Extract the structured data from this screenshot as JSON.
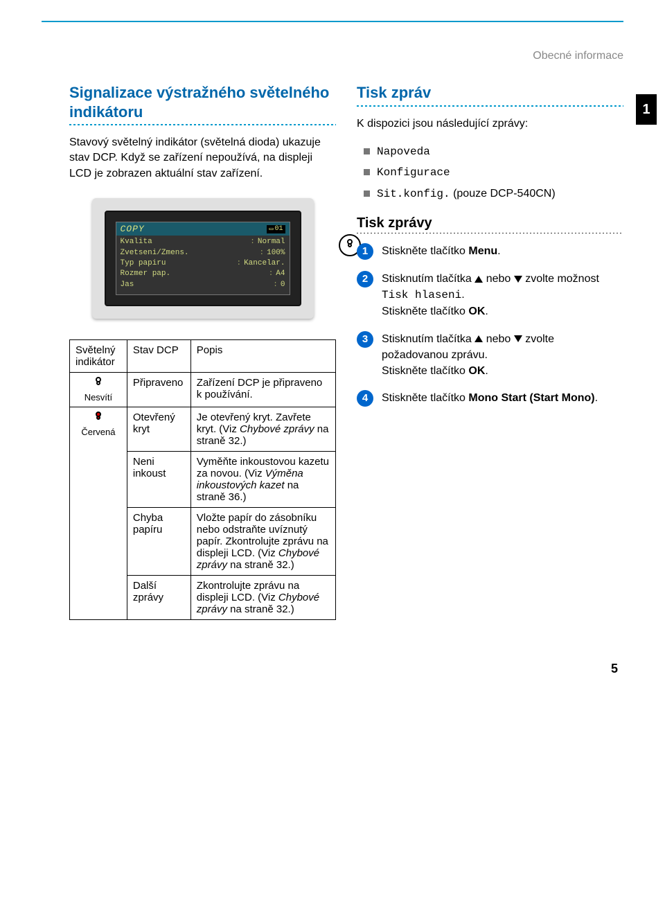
{
  "header_right": "Obecné informace",
  "chapter_tab": "1",
  "page_number": "5",
  "left": {
    "h2": "Signalizace výstražného světelného indikátoru",
    "intro": "Stavový světelný indikátor (světelná dioda) ukazuje stav DCP. Když se zařízení nepoužívá, na displeji LCD je zobrazen aktuální stav zařízení.",
    "lcd": {
      "title": "COPY",
      "badge": "01",
      "rows": [
        {
          "k": "Kvalita",
          "v": "Normal"
        },
        {
          "k": "Zvetseni/Zmens.",
          "v": "100%"
        },
        {
          "k": "Typ papiru",
          "v": "Kancelar."
        },
        {
          "k": "Rozmer pap.",
          "v": "A4"
        },
        {
          "k": "Jas",
          "v": "0"
        }
      ]
    },
    "table": {
      "head": [
        "Světelný indikátor",
        "Stav DCP",
        "Popis"
      ],
      "col0": {
        "off_label": "Nesvítí",
        "red_label": "Červená"
      },
      "rows": [
        {
          "state": "Připraveno",
          "desc": "Zařízení DCP je připraveno k používání."
        },
        {
          "state": "Otevřený kryt",
          "desc_pre": "Je otevřený kryt. Zavřete kryt. (Viz ",
          "desc_link": "Chybové zprávy",
          "desc_post": " na straně 32.)"
        },
        {
          "state": "Neni inkoust",
          "desc_pre": "Vyměňte inkoustovou kazetu za novou. (Viz ",
          "desc_link": "Výměna inkoustových kazet",
          "desc_post": " na straně 36.)"
        },
        {
          "state": "Chyba papíru",
          "desc_pre": "Vložte papír do zásobníku nebo odstraňte uvíznutý papír. Zkontrolujte zprávu na displeji LCD. (Viz ",
          "desc_link": "Chybové zprávy",
          "desc_post": " na straně 32.)"
        },
        {
          "state": "Další zprávy",
          "desc_pre": "Zkontrolujte zprávu na displeji LCD. (Viz ",
          "desc_link": "Chybové zprávy",
          "desc_post": " na straně 32.)"
        }
      ]
    }
  },
  "right": {
    "h2": "Tisk zpráv",
    "intro": "K dispozici jsou následující zprávy:",
    "bullets": [
      {
        "mono": "Napoveda",
        "extra": ""
      },
      {
        "mono": "Konfigurace",
        "extra": ""
      },
      {
        "mono": "Sit.konfig.",
        "extra": " (pouze DCP-540CN)"
      }
    ],
    "h3": "Tisk zprávy",
    "steps": {
      "s1": {
        "t1": "Stiskněte tlačítko ",
        "b1": "Menu",
        "t2": "."
      },
      "s2": {
        "t1": "Stisknutím tlačítka ",
        "t2": " nebo ",
        "t3": " zvolte možnost ",
        "mono": "Tisk hlaseni",
        "t4": ".",
        "line2a": "Stiskněte tlačítko ",
        "line2b": "OK",
        "line2c": "."
      },
      "s3": {
        "t1": "Stisknutím tlačítka ",
        "t2": " nebo ",
        "t3": " zvolte požadovanou zprávu.",
        "line2a": "Stiskněte tlačítko ",
        "line2b": "OK",
        "line2c": "."
      },
      "s4": {
        "t1": "Stiskněte tlačítko ",
        "b1": "Mono Start (Start Mono)",
        "t2": "."
      }
    }
  }
}
